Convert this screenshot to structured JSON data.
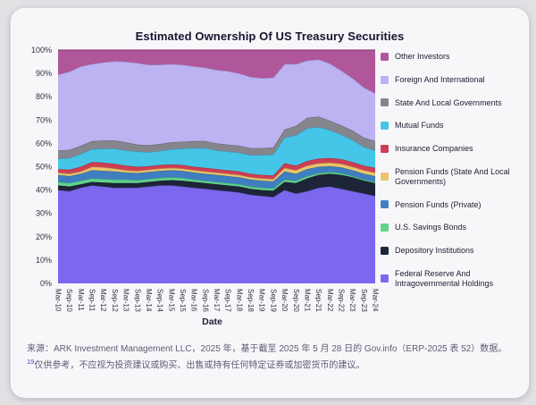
{
  "page": {
    "background_color": "#e1e1e4",
    "card_background_color": "#f7f7fa"
  },
  "chart_data": {
    "type": "area",
    "stacked": true,
    "units": "percent_of_total",
    "title": "Estimated Ownership Of US Treasury Securities",
    "xlabel": "Date",
    "ylabel": "",
    "ylim": [
      0,
      100
    ],
    "grid": false,
    "legend_position": "right",
    "y_ticks": [
      "0%",
      "10%",
      "20%",
      "30%",
      "40%",
      "50%",
      "60%",
      "70%",
      "80%",
      "90%",
      "100%"
    ],
    "categories": [
      "Mar-10",
      "Sep-10",
      "Mar-11",
      "Sep-11",
      "Mar-12",
      "Sep-12",
      "Mar-13",
      "Sep-13",
      "Mar-14",
      "Sep-14",
      "Mar-15",
      "Sep-15",
      "Mar-16",
      "Sep-16",
      "Mar-17",
      "Sep-17",
      "Mar-18",
      "Sep-18",
      "Mar-19",
      "Sep-19",
      "Mar-20",
      "Sep-20",
      "Mar-21",
      "Sep-21",
      "Mar-22",
      "Sep-22",
      "Mar-23",
      "Sep-23",
      "Mar-24"
    ],
    "stacking_order": "bottom_to_top",
    "series": [
      {
        "id": "federal-reserve-and-intragovernmental-holdings",
        "name": "Federal Reserve And Intragovernmental Holdings",
        "color": "#7b68ee",
        "values": [
          40,
          39.5,
          41,
          42,
          41.5,
          41,
          41,
          41,
          41.5,
          42,
          42,
          41.5,
          41,
          40.5,
          40,
          39.5,
          39,
          38,
          37.5,
          37,
          40,
          38.5,
          39.5,
          41,
          41.5,
          40.5,
          39.5,
          38.5,
          37.5
        ]
      },
      {
        "id": "depository-institutions",
        "name": "Depository Institutions",
        "color": "#1e2438",
        "values": [
          2,
          2,
          1.5,
          1.5,
          1.75,
          2,
          2,
          2,
          2,
          2,
          2.25,
          2.5,
          2.5,
          2.5,
          2.5,
          2.5,
          2.5,
          2.5,
          2.5,
          2.75,
          3.5,
          4.5,
          5.5,
          5.5,
          5.5,
          6,
          6,
          5.5,
          5.5
        ]
      },
      {
        "id": "us-savings-bonds",
        "name": "U.S. Savings Bonds",
        "color": "#5fd38d",
        "values": [
          1.5,
          1.5,
          1.5,
          1.5,
          1.5,
          1.5,
          1.5,
          1.25,
          1.25,
          1.25,
          1.25,
          1.25,
          1,
          1,
          1,
          1,
          1,
          1,
          1,
          1,
          1,
          1,
          1,
          0.75,
          0.75,
          0.75,
          0.5,
          0.5,
          0.5
        ]
      },
      {
        "id": "pension-funds-private",
        "name": "Pension Funds (Private)",
        "color": "#3f7fc1",
        "values": [
          3,
          3,
          3,
          3.5,
          3.5,
          3.5,
          3,
          3,
          3,
          3,
          3,
          3,
          3,
          3,
          3,
          3,
          3,
          3,
          3,
          3,
          3.5,
          3,
          3,
          2.75,
          2.5,
          2.5,
          2.5,
          2.5,
          2.5
        ]
      },
      {
        "id": "pension-funds-state-and-local-governments",
        "name": "Pension Funds (State And Local Governments)",
        "color": "#e9c469",
        "values": [
          1,
          1,
          1,
          1.5,
          1.5,
          1.25,
          1,
          1,
          1,
          1,
          1,
          1,
          1,
          1,
          1,
          1,
          1,
          1,
          1,
          1,
          1.5,
          1.5,
          1.5,
          1.5,
          1.5,
          1.5,
          1.5,
          1.5,
          1.5
        ]
      },
      {
        "id": "insurance-companies",
        "name": "Insurance Companies",
        "color": "#cf3e53",
        "values": [
          1.5,
          1.75,
          2,
          2,
          2,
          2,
          2,
          1.75,
          1.5,
          1.5,
          1.5,
          1.5,
          1.5,
          1.5,
          1.5,
          1.5,
          1.5,
          1.5,
          1.5,
          1.5,
          2,
          2,
          2,
          2,
          2,
          2,
          2,
          2,
          2
        ]
      },
      {
        "id": "mutual-funds",
        "name": "Mutual Funds",
        "color": "#45c6e8",
        "values": [
          4.5,
          5,
          5.5,
          5.5,
          6,
          6.5,
          6.5,
          6.5,
          6,
          6,
          6.5,
          7,
          8,
          8.5,
          8,
          8,
          8,
          8,
          8.5,
          9,
          11,
          13,
          14,
          13.5,
          12,
          10.5,
          9.5,
          8,
          7.5
        ]
      },
      {
        "id": "state-and-local-governments",
        "name": "State And Local Governments",
        "color": "#85858d",
        "values": [
          3.5,
          3.5,
          3.5,
          3.5,
          3.5,
          3.5,
          3.5,
          3,
          3,
          3,
          3,
          3,
          3,
          3,
          3,
          3,
          3,
          3,
          3,
          3,
          3.5,
          4,
          4.5,
          4.5,
          4,
          4,
          4,
          4,
          4
        ]
      },
      {
        "id": "foreign-and-international",
        "name": "Foreign And International",
        "color": "#bdb2f2",
        "values": [
          32.5,
          33.5,
          34,
          33,
          33.5,
          34,
          34.5,
          35,
          34.5,
          34,
          33.5,
          33,
          32,
          31.5,
          31.5,
          31.5,
          31,
          30.5,
          30,
          30,
          28,
          26.5,
          24.5,
          24.5,
          24.5,
          23.5,
          22.5,
          21.5,
          20.5
        ]
      },
      {
        "id": "other-investors",
        "name": "Other Investors",
        "color": "#b0569a",
        "values": [
          10.5,
          9.25,
          7,
          6,
          5.25,
          4.75,
          5,
          5.5,
          6.25,
          6.25,
          6,
          6.25,
          7,
          7.5,
          8.5,
          9,
          10,
          11.5,
          12,
          11.75,
          6,
          6,
          4.5,
          4,
          5.75,
          8.75,
          12,
          16,
          18.5
        ]
      }
    ]
  },
  "footer": {
    "line1": "来源：ARK Investment Management LLC，2025 年，基于截至 2025 年 5 月 28 日的 Gov.info（ERP-2025 表 52）数据。",
    "superscript": "19",
    "line2": "仅供参考，不应视为投资建议或购买、出售或持有任何特定证券或加密货币的建议。"
  }
}
